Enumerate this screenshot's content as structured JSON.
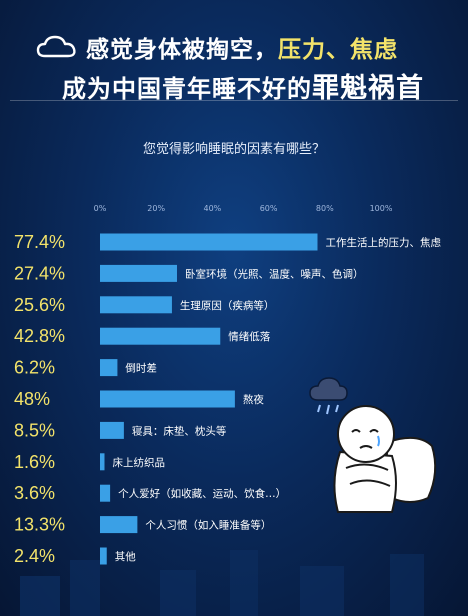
{
  "header": {
    "line1_prefix": "感觉身体被掏空，",
    "line1_highlight": "压力、焦虑",
    "line2_prefix": "成为中国青年睡不好的",
    "line2_highlight": "罪魁祸首"
  },
  "colors": {
    "accent_yellow": "#f3e36a",
    "bar": "#3aa0e6",
    "background": "#0a2a5c"
  },
  "icons": [
    "cloud-icon",
    "sad-sleepy-person-illustration"
  ],
  "chart_data": {
    "type": "bar",
    "orientation": "horizontal",
    "title": "您觉得影响睡眠的因素有哪些？",
    "x_ticks": [
      "0%",
      "20%",
      "40%",
      "60%",
      "80%",
      "100%"
    ],
    "xlim": [
      0,
      100
    ],
    "categories": [
      "工作生活上的压力、焦虑",
      "卧室环境（光照、温度、噪声、色调）",
      "生理原因（疾病等）",
      "情绪低落",
      "倒时差",
      "熬夜",
      "寝具：床垫、枕头等",
      "床上纺织品",
      "个人爱好（如收藏、运动、饮食…）",
      "个人习惯（如入睡准备等）",
      "其他"
    ],
    "values": [
      77.4,
      27.4,
      25.6,
      42.8,
      6.2,
      48,
      8.5,
      1.6,
      3.6,
      13.3,
      2.4
    ],
    "value_labels": [
      "77.4%",
      "27.4%",
      "25.6%",
      "42.8%",
      "6.2%",
      "48%",
      "8.5%",
      "1.6%",
      "3.6%",
      "13.3%",
      "2.4%"
    ],
    "grid": false
  }
}
